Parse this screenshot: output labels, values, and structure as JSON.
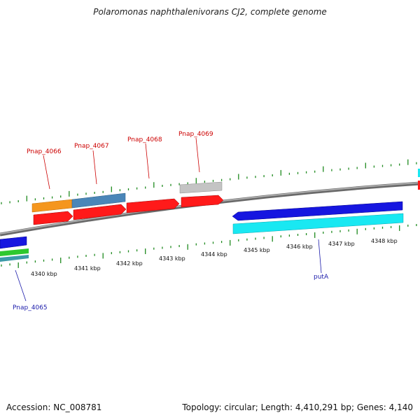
{
  "title": "Polaromonas naphthalenivorans CJ2, complete genome",
  "footer": {
    "accession": "Accession: NC_008781",
    "topology": "Topology: circular; Length: 4,410,291 bp; Genes: 4,140"
  },
  "colors": {
    "backbone": "#8c8c8c",
    "tick": "#1f8a1f",
    "label_forward": "#cc0000",
    "label_reverse": "#1a1aaa",
    "cds": "#ff1a1a",
    "orange": "#f5961e",
    "steelblue": "#4a86b8",
    "grey": "#c4c4c4",
    "blue": "#1616e0",
    "cyan": "#19e8f2",
    "green": "#2ec82e",
    "teal": "#3c9aa8"
  },
  "scale": {
    "ticks": [
      {
        "label": "4340 kbp"
      },
      {
        "label": "4341 kbp"
      },
      {
        "label": "4342 kbp"
      },
      {
        "label": "4343 kbp"
      },
      {
        "label": "4344 kbp"
      },
      {
        "label": "4345 kbp"
      },
      {
        "label": "4346 kbp"
      },
      {
        "label": "4347 kbp"
      },
      {
        "label": "4348 kbp"
      }
    ]
  },
  "gene_labels": [
    {
      "name": "Pnap_4066",
      "strand": "forward"
    },
    {
      "name": "Pnap_4067",
      "strand": "forward"
    },
    {
      "name": "Pnap_4068",
      "strand": "forward"
    },
    {
      "name": "Pnap_4069",
      "strand": "forward"
    },
    {
      "name": "putA",
      "strand": "reverse"
    },
    {
      "name": "Pnap_4065",
      "strand": "reverse"
    }
  ]
}
